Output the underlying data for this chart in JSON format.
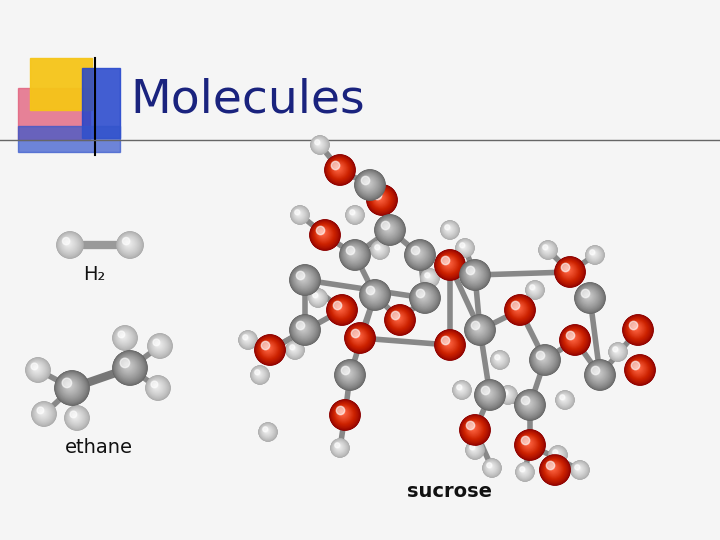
{
  "title": "Molecules",
  "title_color": "#1a237e",
  "title_fontsize": 34,
  "bg_color": "#f5f5f5",
  "header_line_color": "#555555",
  "label_h2": "H₂",
  "label_ethane": "ethane",
  "label_sucrose": "sucrose",
  "label_fontsize": 13,
  "atom_gray_dark": "#666666",
  "atom_gray_mid": "#999999",
  "atom_gray_light": "#cccccc",
  "atom_white_dark": "#aaaaaa",
  "atom_white_mid": "#cccccc",
  "atom_white_light": "#eeeeee",
  "atom_red_dark": "#8b0000",
  "atom_red_mid": "#cc2200",
  "atom_red_light": "#ff6644",
  "bond_color": "#888888",
  "bond_lw": 3.5
}
